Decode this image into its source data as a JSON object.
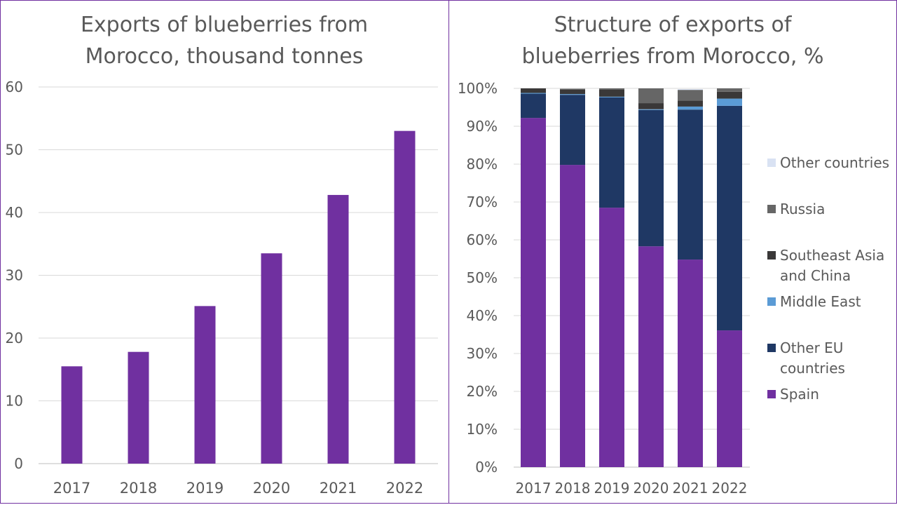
{
  "chart_data": [
    {
      "type": "bar",
      "title": [
        "Exports of blueberries  from",
        "Morocco, thousand tonnes"
      ],
      "categories": [
        "2017",
        "2018",
        "2019",
        "2020",
        "2021",
        "2022"
      ],
      "values": [
        15.5,
        17.8,
        25.1,
        33.5,
        42.8,
        53.0
      ],
      "ylim": [
        0,
        60
      ],
      "yticks": [
        "0",
        "10",
        "20",
        "30",
        "40",
        "50",
        "60"
      ],
      "grid": true,
      "color": "#7030a0"
    },
    {
      "type": "bar",
      "stacked": true,
      "title": [
        "Structure of exports of",
        "blueberries  from Morocco, %"
      ],
      "categories": [
        "2017",
        "2018",
        "2019",
        "2020",
        "2021",
        "2022"
      ],
      "ylim": [
        0,
        100
      ],
      "yticks": [
        "0%",
        "10%",
        "20%",
        "30%",
        "40%",
        "50%",
        "60%",
        "70%",
        "80%",
        "90%",
        "100%"
      ],
      "grid": true,
      "legend_position": "right",
      "series": [
        {
          "name": "Spain",
          "color": "#7030a0",
          "values": [
            92.2,
            79.8,
            68.5,
            58.3,
            54.8,
            36.1
          ]
        },
        {
          "name": "Other EU countries",
          "color": "#1f3864",
          "values": [
            6.4,
            18.5,
            29.1,
            36.0,
            39.6,
            59.3
          ]
        },
        {
          "name": "Middle East",
          "color": "#5b9bd5",
          "values": [
            0.2,
            0.2,
            0.2,
            0.2,
            0.8,
            1.9
          ]
        },
        {
          "name": "Southeast Asia and China",
          "color": "#3a3838",
          "values": [
            1.2,
            1.2,
            1.9,
            1.6,
            1.6,
            1.8
          ]
        },
        {
          "name": "Russia",
          "color": "#666666",
          "values": [
            0.0,
            0.2,
            0.3,
            3.9,
            2.8,
            0.9
          ]
        },
        {
          "name": "Other countries",
          "color": "#d9e2f3",
          "values": [
            0.0,
            0.0,
            0.0,
            0.0,
            0.2,
            0.0
          ]
        }
      ],
      "legend_lines": {
        "Spain": [
          "Spain"
        ],
        "Other EU countries": [
          "Other EU",
          "countries"
        ],
        "Middle East": [
          "Middle East"
        ],
        "Southeast Asia and China": [
          "Southeast Asia",
          "and China"
        ],
        "Russia": [
          "Russia"
        ],
        "Other countries": [
          "Other countries"
        ]
      }
    }
  ]
}
